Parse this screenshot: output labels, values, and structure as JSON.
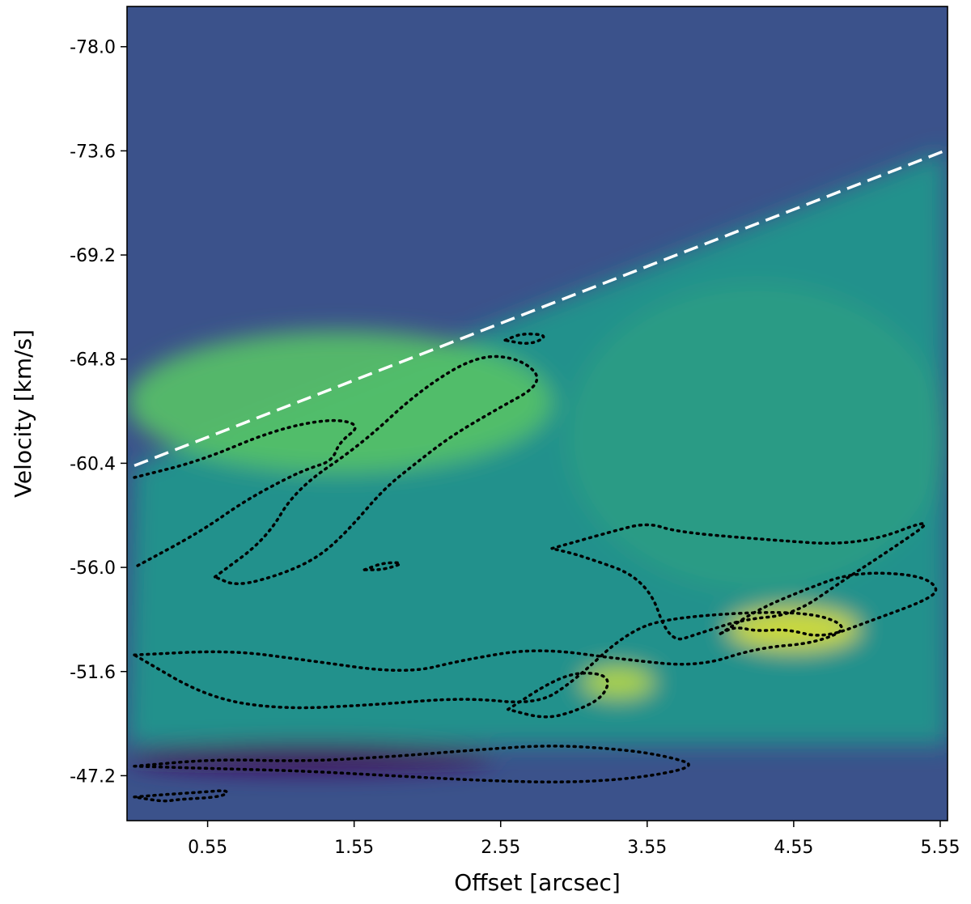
{
  "chart_data": {
    "type": "heatmap",
    "title": "",
    "xlabel": "Offset [arcsec]",
    "ylabel": "Velocity [km/s]",
    "xlim": [
      0.0,
      5.6
    ],
    "ylim": [
      -45.3,
      -79.7
    ],
    "y_axis_inverted": true,
    "x_ticks": [
      0.55,
      1.55,
      2.55,
      3.55,
      4.55,
      5.55
    ],
    "x_tick_labels": [
      "0.55",
      "1.55",
      "2.55",
      "3.55",
      "4.55",
      "5.55"
    ],
    "y_ticks": [
      -78.0,
      -73.6,
      -69.2,
      -64.8,
      -60.4,
      -56.0,
      -51.6,
      -47.2
    ],
    "y_tick_labels": [
      "-78.0",
      "-73.6",
      "-69.2",
      "-64.8",
      "-60.4",
      "-56.0",
      "-51.6",
      "-47.2"
    ],
    "colormap": "viridis",
    "grid": false,
    "legend": "none",
    "colors": {
      "background_low": "#3b528b",
      "emission_mid": "#2a9a8a",
      "emission_high": "#b5de2b",
      "peak": "#fde725",
      "absorption": "#440154",
      "edge_line": "#ffffff",
      "contour": "#000000"
    },
    "intensity_features": [
      {
        "feature": "diagonal emission ridge",
        "x": [
          0.0,
          2.9
        ],
        "y": [
          -60.0,
          -66.0
        ],
        "level": 0.72
      },
      {
        "feature": "broad emission band",
        "x": [
          3.0,
          5.6
        ],
        "y": [
          -55.0,
          -68.0
        ],
        "level": 0.55
      },
      {
        "feature": "bright knot",
        "x": [
          4.1,
          5.0
        ],
        "y": [
          -52.5,
          -54.3
        ],
        "level": 0.95
      },
      {
        "feature": "bright knot",
        "x": [
          3.1,
          3.6
        ],
        "y": [
          -50.5,
          -51.8
        ],
        "level": 0.9
      },
      {
        "feature": "absorption band",
        "x": [
          0.0,
          2.5
        ],
        "y": [
          -47.3,
          -48.6
        ],
        "level": 0.03
      }
    ],
    "edge_line": {
      "style": "dashed",
      "color": "white",
      "x": [
        0.05,
        5.58
      ],
      "y": [
        -60.3,
        -73.6
      ]
    },
    "contours": [
      {
        "style": "dotted",
        "x": [
          0.05,
          0.5,
          1.0,
          1.4,
          1.6,
          1.45,
          1.4,
          1.25,
          1.1,
          0.8,
          0.5,
          0.05
        ],
        "y": [
          -59.8,
          -60.5,
          -61.8,
          -62.3,
          -62.0,
          -61.3,
          -60.5,
          -60.2,
          -59.8,
          -58.8,
          -57.5,
          -56.0
        ]
      },
      {
        "style": "dotted",
        "x": [
          0.6,
          0.95,
          1.15,
          1.6,
          2.0,
          2.4,
          2.7,
          2.85,
          2.5,
          2.2,
          1.95,
          1.75,
          1.5,
          1.3,
          1.05,
          0.75,
          0.6
        ],
        "y": [
          -55.6,
          -57.2,
          -59.3,
          -61.2,
          -63.5,
          -65.0,
          -64.8,
          -63.8,
          -62.6,
          -61.5,
          -60.3,
          -59.3,
          -57.5,
          -56.4,
          -55.7,
          -55.2,
          -55.6
        ]
      },
      {
        "style": "dotted",
        "x": [
          2.58,
          2.7,
          2.88,
          2.75,
          2.58
        ],
        "y": [
          -65.6,
          -65.9,
          -65.8,
          -65.4,
          -65.6
        ]
      },
      {
        "style": "dotted",
        "x": [
          1.62,
          1.75,
          1.9,
          1.75,
          1.62
        ],
        "y": [
          -55.9,
          -56.2,
          -56.2,
          -55.9,
          -55.9
        ]
      },
      {
        "style": "dotted",
        "x": [
          0.05,
          0.7,
          1.2,
          1.9,
          2.3,
          2.8,
          3.4,
          3.9,
          4.3,
          4.7,
          4.95,
          4.6,
          3.7,
          3.4,
          3.05,
          2.8,
          2.3,
          1.7,
          1.05,
          0.55,
          0.05
        ],
        "y": [
          -52.3,
          -52.5,
          -52.1,
          -51.5,
          -52.1,
          -52.6,
          -52.1,
          -51.8,
          -52.6,
          -52.8,
          -53.5,
          -54.2,
          -53.9,
          -53.2,
          -51.2,
          -50.2,
          -50.5,
          -50.2,
          -50.0,
          -50.5,
          -52.3
        ]
      },
      {
        "style": "dotted",
        "x": [
          2.9,
          3.3,
          3.55,
          3.75,
          4.3,
          5.0,
          5.55,
          5.2,
          4.9,
          4.55,
          4.2,
          3.9,
          3.7,
          3.55,
          3.1,
          2.9
        ],
        "y": [
          -56.8,
          -57.5,
          -57.9,
          -57.5,
          -57.2,
          -56.9,
          -58.2,
          -56.7,
          -55.5,
          -54.0,
          -53.8,
          -53.2,
          -52.8,
          -55.5,
          -56.5,
          -56.8
        ]
      },
      {
        "style": "dotted",
        "x": [
          4.05,
          4.3,
          4.6,
          4.95,
          5.4,
          5.55,
          5.45,
          5.1,
          4.75,
          4.5,
          4.3,
          4.15,
          4.05
        ],
        "y": [
          -53.2,
          -54.2,
          -55.0,
          -55.8,
          -55.7,
          -55.1,
          -54.6,
          -53.8,
          -53.0,
          -53.4,
          -53.3,
          -53.5,
          -53.2
        ]
      },
      {
        "style": "dotted",
        "x": [
          2.6,
          2.9,
          3.1,
          3.3,
          3.25,
          3.05,
          2.85,
          2.6
        ],
        "y": [
          -50.0,
          -51.2,
          -51.6,
          -51.4,
          -50.5,
          -49.9,
          -49.6,
          -50.0
        ]
      },
      {
        "style": "dotted",
        "x": [
          0.05,
          0.6,
          1.2,
          1.8,
          2.4,
          2.9,
          3.4,
          3.7,
          3.9,
          3.5,
          3.0,
          2.4,
          1.8,
          1.2,
          0.6,
          0.05
        ],
        "y": [
          -47.6,
          -47.9,
          -47.8,
          -48.0,
          -48.3,
          -48.5,
          -48.3,
          -48.0,
          -47.6,
          -47.1,
          -46.9,
          -47.0,
          -47.2,
          -47.4,
          -47.5,
          -47.6
        ]
      },
      {
        "style": "dotted",
        "x": [
          0.05,
          0.25,
          0.5,
          0.7,
          0.65,
          0.35,
          0.25,
          0.05
        ],
        "y": [
          -46.3,
          -46.4,
          -46.5,
          -46.6,
          -46.3,
          -46.2,
          -46.1,
          -46.3
        ]
      }
    ]
  }
}
